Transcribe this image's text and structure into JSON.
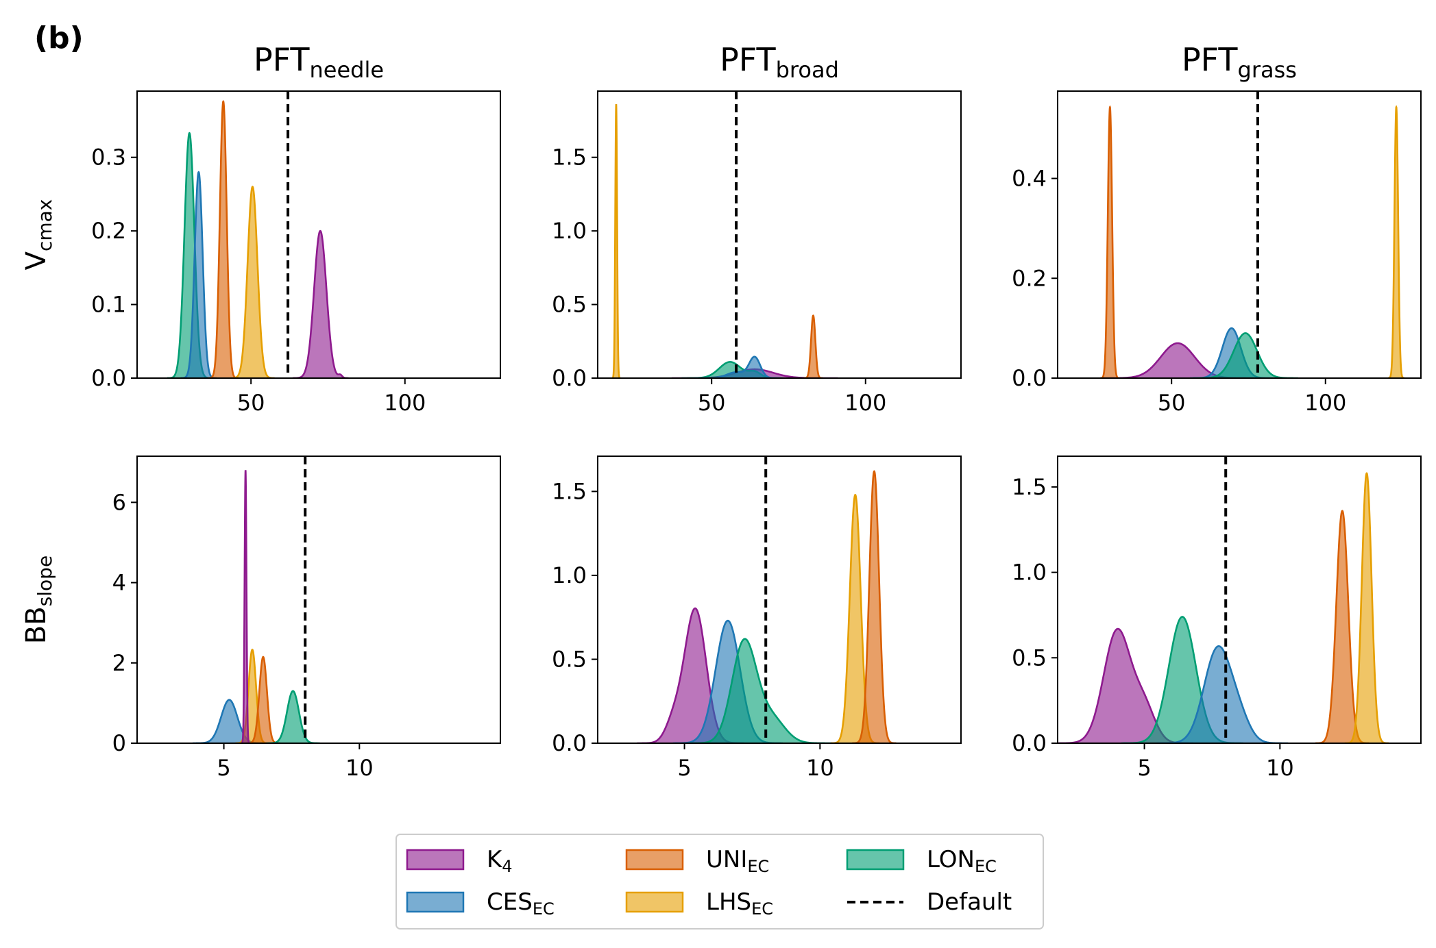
{
  "figure_label": "(b)",
  "column_titles": [
    {
      "main": "PFT",
      "sub": "needle"
    },
    {
      "main": "PFT",
      "sub": "broad"
    },
    {
      "main": "PFT",
      "sub": "grass"
    }
  ],
  "row_labels": [
    {
      "main": "V",
      "sub": "cmax"
    },
    {
      "main": "BB",
      "sub": "slope"
    }
  ],
  "colors": {
    "K4": "#8e1a8e",
    "CES": "#1f77b4",
    "UNI": "#d95f02",
    "LHS": "#e69f00",
    "LON": "#009e73",
    "default": "#000000"
  },
  "legend": {
    "placement": "bottom-center",
    "items": [
      {
        "key": "K4",
        "main": "K",
        "sub": "4",
        "style": "fill"
      },
      {
        "key": "UNI",
        "main": "UNI",
        "sub": "EC",
        "style": "fill"
      },
      {
        "key": "LON",
        "main": "LON",
        "sub": "EC",
        "style": "fill"
      },
      {
        "key": "CES",
        "main": "CES",
        "sub": "EC",
        "style": "fill"
      },
      {
        "key": "LHS",
        "main": "LHS",
        "sub": "EC",
        "style": "fill"
      },
      {
        "key": "default",
        "main": "Default",
        "sub": "",
        "style": "dashed"
      }
    ]
  },
  "chart_data": [
    {
      "type": "area",
      "row": 0,
      "col": 0,
      "xlim": [
        13,
        131
      ],
      "ylim": [
        0,
        0.39
      ],
      "xticks": [
        {
          "v": 50,
          "label": "50"
        },
        {
          "v": 100,
          "label": "100"
        }
      ],
      "yticks": [
        {
          "v": 0,
          "label": "0.0"
        },
        {
          "v": 0.1,
          "label": "0.1"
        },
        {
          "v": 0.2,
          "label": "0.2"
        },
        {
          "v": 0.3,
          "label": "0.3"
        }
      ],
      "default_value": 62,
      "series": [
        {
          "key": "LON",
          "peaks": [
            {
              "mu": 30,
              "sd": 1.6,
              "h": 0.333
            }
          ]
        },
        {
          "key": "CES",
          "peaks": [
            {
              "mu": 33,
              "sd": 1.3,
              "h": 0.28
            }
          ]
        },
        {
          "key": "UNI",
          "peaks": [
            {
              "mu": 41,
              "sd": 1.1,
              "h": 0.376
            }
          ]
        },
        {
          "key": "LHS",
          "peaks": [
            {
              "mu": 50.5,
              "sd": 1.6,
              "h": 0.26
            }
          ]
        },
        {
          "key": "K4",
          "peaks": [
            {
              "mu": 72.5,
              "sd": 2.0,
              "h": 0.2
            },
            {
              "mu": 79,
              "sd": 0.6,
              "h": 0.004
            }
          ]
        }
      ]
    },
    {
      "type": "area",
      "row": 0,
      "col": 1,
      "xlim": [
        13,
        131
      ],
      "ylim": [
        0,
        1.95
      ],
      "xticks": [
        {
          "v": 50,
          "label": "50"
        },
        {
          "v": 100,
          "label": "100"
        }
      ],
      "yticks": [
        {
          "v": 0,
          "label": "0.0"
        },
        {
          "v": 0.5,
          "label": "0.5"
        },
        {
          "v": 1.0,
          "label": "1.0"
        },
        {
          "v": 1.5,
          "label": "1.5"
        }
      ],
      "default_value": 58,
      "series": [
        {
          "key": "K4",
          "peaks": [
            {
              "mu": 64,
              "sd": 6.0,
              "h": 0.06
            }
          ]
        },
        {
          "key": "LON",
          "peaks": [
            {
              "mu": 56,
              "sd": 3.5,
              "h": 0.11
            },
            {
              "mu": 64,
              "sd": 2.0,
              "h": 0.04
            }
          ]
        },
        {
          "key": "CES",
          "peaks": [
            {
              "mu": 64,
              "sd": 1.8,
              "h": 0.14
            },
            {
              "mu": 58,
              "sd": 3.0,
              "h": 0.04
            }
          ]
        },
        {
          "key": "UNI",
          "peaks": [
            {
              "mu": 83,
              "sd": 0.7,
              "h": 0.425
            }
          ]
        },
        {
          "key": "LHS",
          "peaks": [
            {
              "mu": 19,
              "sd": 0.3,
              "h": 1.86
            }
          ]
        }
      ]
    },
    {
      "type": "area",
      "row": 0,
      "col": 2,
      "xlim": [
        13,
        131
      ],
      "ylim": [
        0,
        0.575
      ],
      "xticks": [
        {
          "v": 50,
          "label": "50"
        },
        {
          "v": 100,
          "label": "100"
        }
      ],
      "yticks": [
        {
          "v": 0,
          "label": "0.0"
        },
        {
          "v": 0.2,
          "label": "0.2"
        },
        {
          "v": 0.4,
          "label": "0.4"
        }
      ],
      "default_value": 78,
      "series": [
        {
          "key": "K4",
          "peaks": [
            {
              "mu": 52,
              "sd": 5.5,
              "h": 0.07
            }
          ]
        },
        {
          "key": "CES",
          "peaks": [
            {
              "mu": 69.5,
              "sd": 3.0,
              "h": 0.1
            }
          ]
        },
        {
          "key": "LON",
          "peaks": [
            {
              "mu": 74,
              "sd": 3.8,
              "h": 0.09
            }
          ]
        },
        {
          "key": "UNI",
          "peaks": [
            {
              "mu": 30,
              "sd": 0.7,
              "h": 0.543
            }
          ]
        },
        {
          "key": "LHS",
          "peaks": [
            {
              "mu": 123,
              "sd": 0.6,
              "h": 0.543
            }
          ]
        }
      ]
    },
    {
      "type": "area",
      "row": 1,
      "col": 0,
      "xlim": [
        1.8,
        15.2
      ],
      "ylim": [
        0,
        7.15
      ],
      "xticks": [
        {
          "v": 5,
          "label": "5"
        },
        {
          "v": 10,
          "label": "10"
        }
      ],
      "yticks": [
        {
          "v": 0,
          "label": "0"
        },
        {
          "v": 2,
          "label": "2"
        },
        {
          "v": 4,
          "label": "4"
        },
        {
          "v": 6,
          "label": "6"
        }
      ],
      "default_value": 8,
      "series": [
        {
          "key": "CES",
          "peaks": [
            {
              "mu": 5.2,
              "sd": 0.3,
              "h": 1.08
            }
          ]
        },
        {
          "key": "LHS",
          "peaks": [
            {
              "mu": 6.05,
              "sd": 0.14,
              "h": 2.33
            }
          ]
        },
        {
          "key": "UNI",
          "peaks": [
            {
              "mu": 6.45,
              "sd": 0.14,
              "h": 2.15
            }
          ]
        },
        {
          "key": "LON",
          "peaks": [
            {
              "mu": 7.55,
              "sd": 0.22,
              "h": 1.3
            }
          ]
        },
        {
          "key": "K4",
          "peaks": [
            {
              "mu": 5.8,
              "sd": 0.035,
              "h": 6.8
            }
          ]
        }
      ]
    },
    {
      "type": "area",
      "row": 1,
      "col": 1,
      "xlim": [
        1.8,
        15.2
      ],
      "ylim": [
        0,
        1.71
      ],
      "xticks": [
        {
          "v": 5,
          "label": "5"
        },
        {
          "v": 10,
          "label": "10"
        }
      ],
      "yticks": [
        {
          "v": 0,
          "label": "0.0"
        },
        {
          "v": 0.5,
          "label": "0.5"
        },
        {
          "v": 1.0,
          "label": "1.0"
        },
        {
          "v": 1.5,
          "label": "1.5"
        }
      ],
      "default_value": 8,
      "series": [
        {
          "key": "K4",
          "peaks": [
            {
              "mu": 5.4,
              "sd": 0.4,
              "h": 0.8
            },
            {
              "mu": 4.6,
              "sd": 0.3,
              "h": 0.12
            }
          ]
        },
        {
          "key": "CES",
          "peaks": [
            {
              "mu": 6.6,
              "sd": 0.45,
              "h": 0.73
            }
          ]
        },
        {
          "key": "LON",
          "peaks": [
            {
              "mu": 7.2,
              "sd": 0.45,
              "h": 0.6
            },
            {
              "mu": 8.2,
              "sd": 0.5,
              "h": 0.15
            }
          ]
        },
        {
          "key": "LHS",
          "peaks": [
            {
              "mu": 11.3,
              "sd": 0.2,
              "h": 1.48
            }
          ]
        },
        {
          "key": "UNI",
          "peaks": [
            {
              "mu": 12.0,
              "sd": 0.18,
              "h": 1.62
            }
          ]
        }
      ]
    },
    {
      "type": "area",
      "row": 1,
      "col": 2,
      "xlim": [
        1.8,
        15.2
      ],
      "ylim": [
        0,
        1.68
      ],
      "xticks": [
        {
          "v": 5,
          "label": "5"
        },
        {
          "v": 10,
          "label": "10"
        }
      ],
      "yticks": [
        {
          "v": 0,
          "label": "0.0"
        },
        {
          "v": 0.5,
          "label": "0.5"
        },
        {
          "v": 1.0,
          "label": "1.0"
        },
        {
          "v": 1.5,
          "label": "1.5"
        }
      ],
      "default_value": 8,
      "series": [
        {
          "key": "K4",
          "peaks": [
            {
              "mu": 4.0,
              "sd": 0.5,
              "h": 0.66
            },
            {
              "mu": 5.0,
              "sd": 0.4,
              "h": 0.2
            }
          ]
        },
        {
          "key": "LON",
          "peaks": [
            {
              "mu": 6.4,
              "sd": 0.5,
              "h": 0.74
            }
          ]
        },
        {
          "key": "CES",
          "peaks": [
            {
              "mu": 7.7,
              "sd": 0.5,
              "h": 0.55
            },
            {
              "mu": 8.5,
              "sd": 0.4,
              "h": 0.12
            }
          ]
        },
        {
          "key": "UNI",
          "peaks": [
            {
              "mu": 12.3,
              "sd": 0.22,
              "h": 1.36
            }
          ]
        },
        {
          "key": "LHS",
          "peaks": [
            {
              "mu": 13.2,
              "sd": 0.18,
              "h": 1.58
            }
          ]
        }
      ]
    }
  ]
}
